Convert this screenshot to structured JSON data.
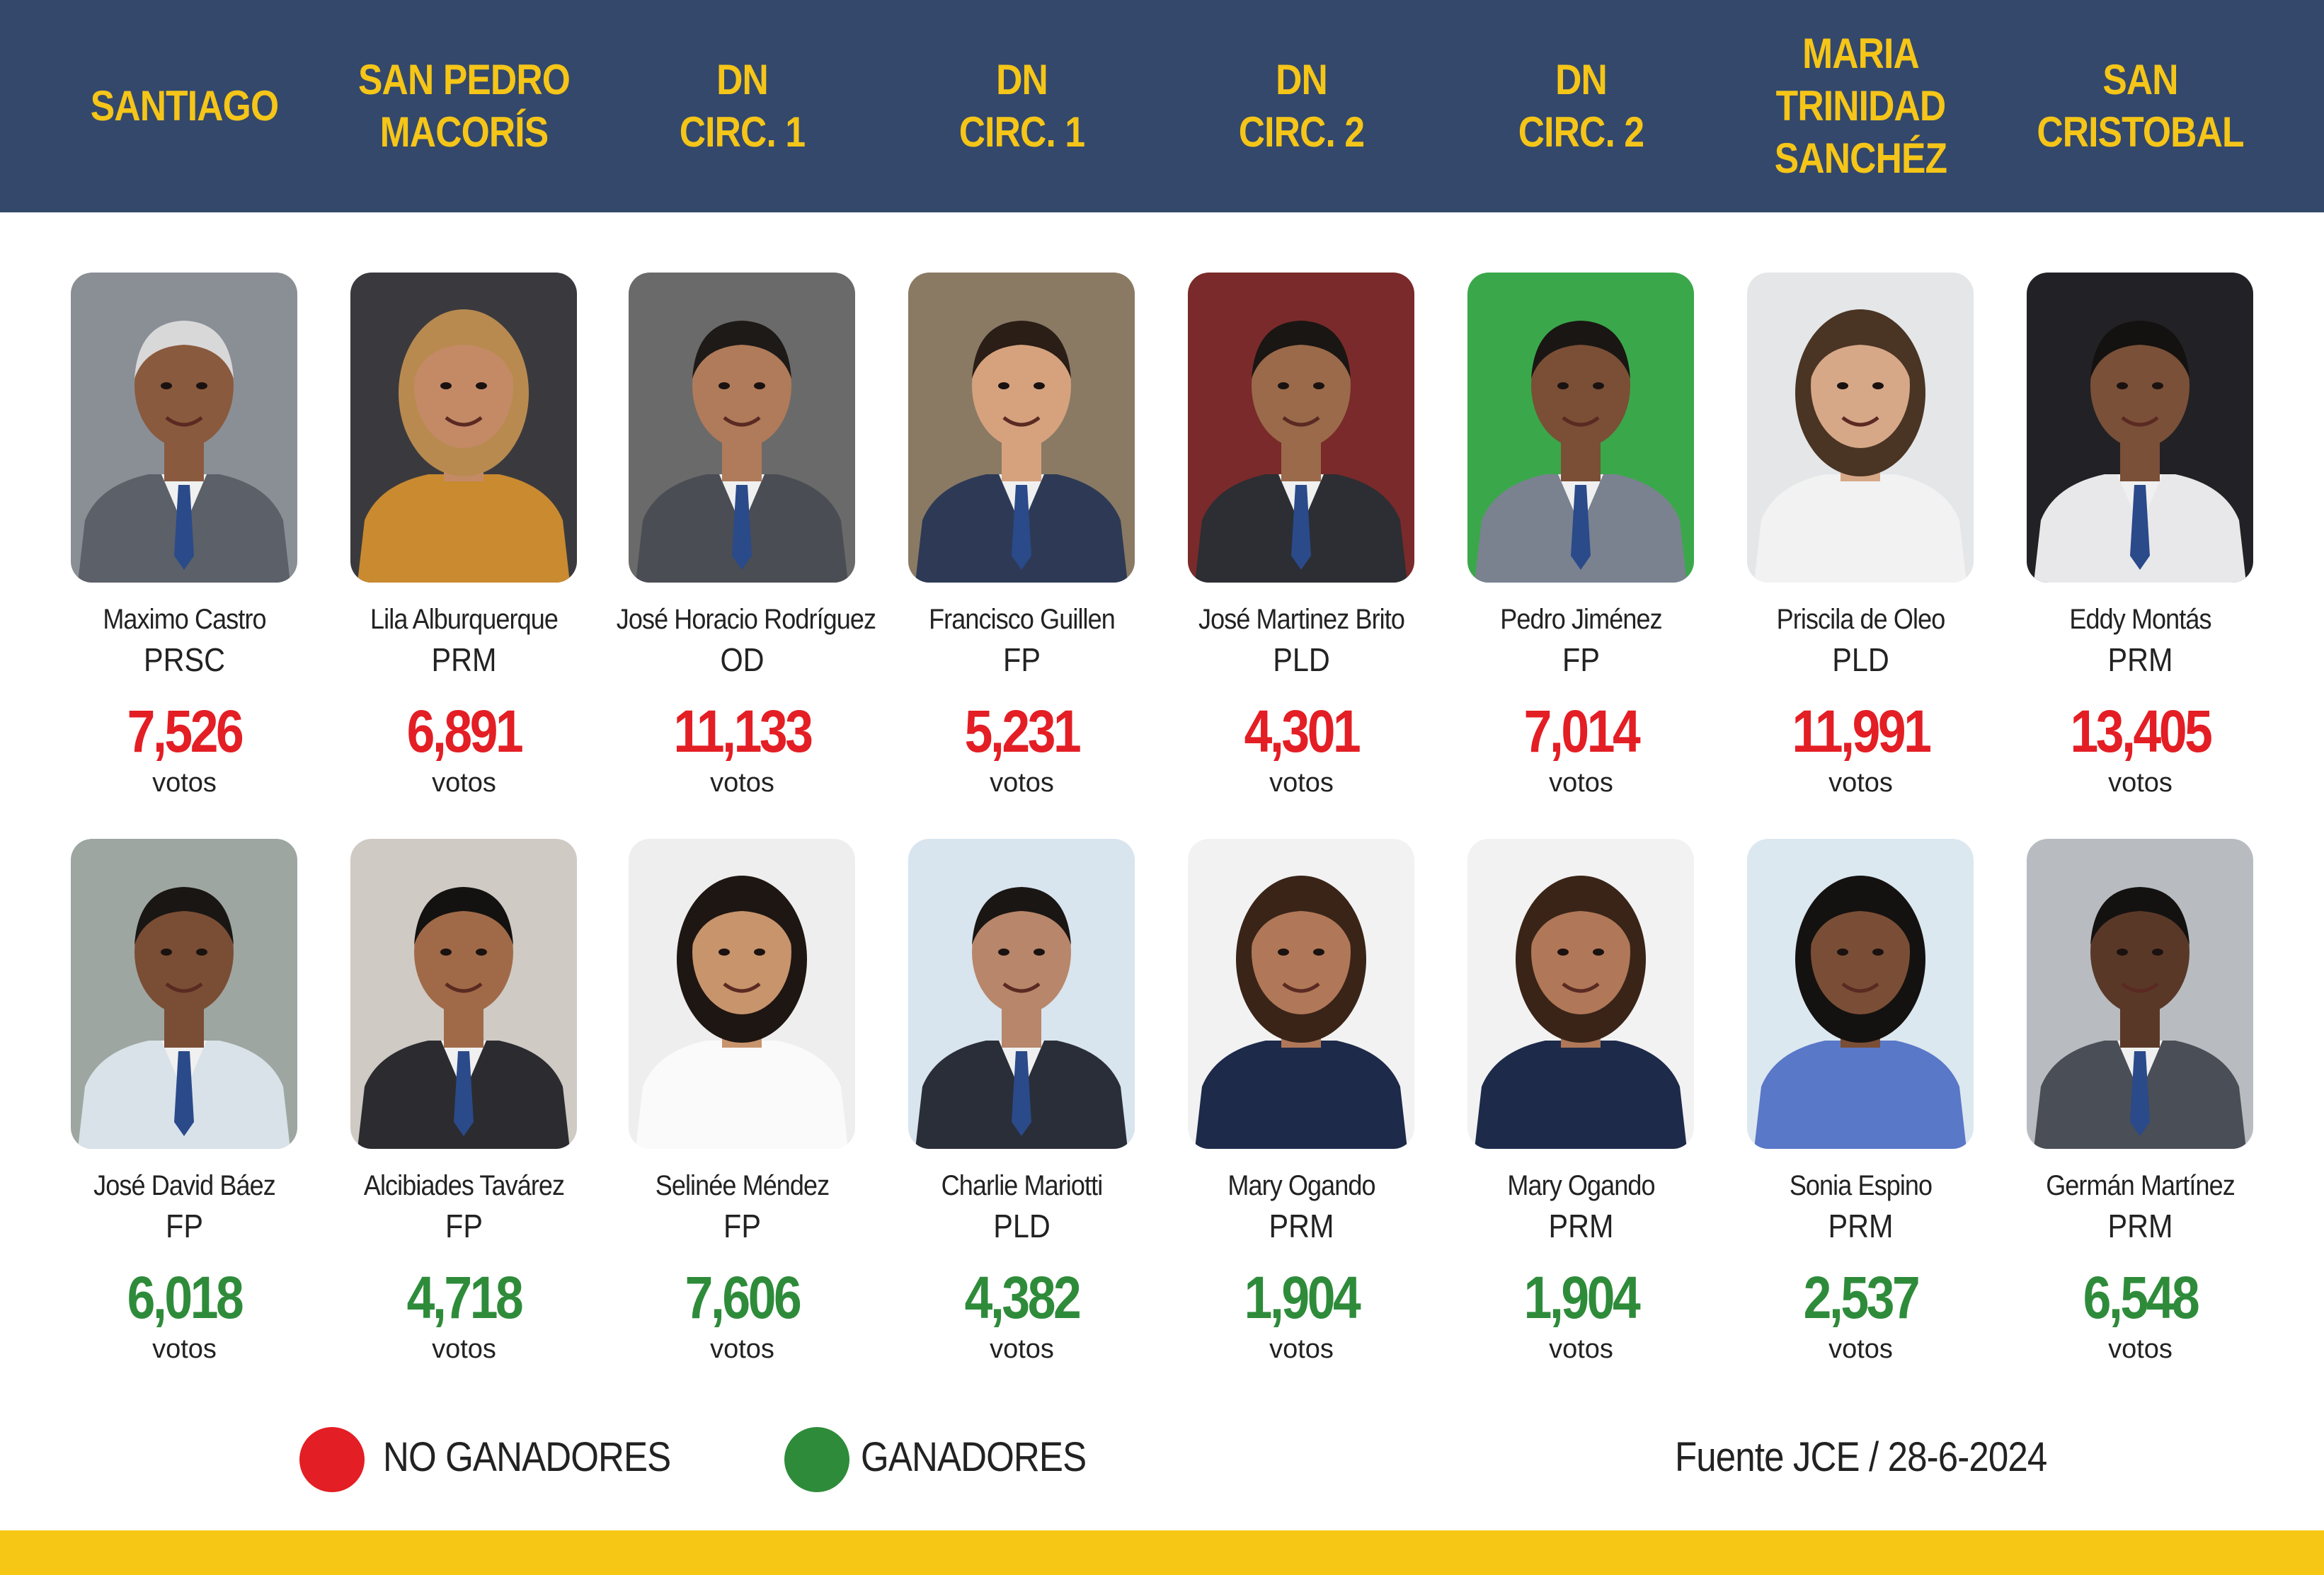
{
  "headers": [
    "SANTIAGO",
    "SAN PEDRO\nMACORÍS",
    "DN\nCIRC. 1",
    "DN\nCIRC. 1",
    "DN\nCIRC. 2",
    "DN\nCIRC. 2",
    "MARIA TRINIDAD\nSANCHÉZ",
    "SAN\nCRISTOBAL"
  ],
  "top_row": [
    {
      "name": "Maximo Castro",
      "party": "PRSC",
      "votes": "7,526",
      "votes_label": "votos",
      "bg": "#8a8f96",
      "skin": "#8a5a3e",
      "hair": "#d8d8d8",
      "suit": "#5b6069"
    },
    {
      "name": "Lila Alburquerque",
      "party": "PRM",
      "votes": "6,891",
      "votes_label": "votos",
      "bg": "#3a3a3e",
      "skin": "#c48a66",
      "hair": "#b88a50",
      "suit": "#c98a30"
    },
    {
      "name": "José Horacio Rodríguez",
      "party": "OD",
      "votes": "11,133",
      "votes_label": "votos",
      "bg": "#6a6a6a",
      "skin": "#b07b5a",
      "hair": "#1e1a18",
      "suit": "#4a4d53"
    },
    {
      "name": "Francisco Guillen",
      "party": "FP",
      "votes": "5,231",
      "votes_label": "votos",
      "bg": "#8a7a64",
      "skin": "#d6a27e",
      "hair": "#2a1e16",
      "suit": "#2e3a55"
    },
    {
      "name": "José Martinez Brito",
      "party": "PLD",
      "votes": "4,301",
      "votes_label": "votos",
      "bg": "#7a2a2a",
      "skin": "#9a6a4a",
      "hair": "#1a1614",
      "suit": "#2c2e33"
    },
    {
      "name": "Pedro Jiménez",
      "party": "FP",
      "votes": "7,014",
      "votes_label": "votos",
      "bg": "#3aa84a",
      "skin": "#7a4f36",
      "hair": "#1a1614",
      "suit": "#7a8290"
    },
    {
      "name": "Priscila de Oleo",
      "party": "PLD",
      "votes": "11,991",
      "votes_label": "votos",
      "bg": "#e4e6e8",
      "skin": "#d6a888",
      "hair": "#4a3424",
      "suit": "#f2f2f2"
    },
    {
      "name": "Eddy Montás",
      "party": "PRM",
      "votes": "13,405",
      "votes_label": "votos",
      "bg": "#222226",
      "skin": "#7a5038",
      "hair": "#141210",
      "suit": "#e8e8ea"
    }
  ],
  "bottom_row": [
    {
      "name": "José David Báez",
      "party": "FP",
      "votes": "6,018",
      "votes_label": "votos",
      "bg": "#9ea6a2",
      "skin": "#7a4e34",
      "hair": "#1a1614",
      "suit": "#d8e2e8"
    },
    {
      "name": "Alcibiades Tavárez",
      "party": "FP",
      "votes": "4,718",
      "votes_label": "votos",
      "bg": "#cfcac4",
      "skin": "#a06a48",
      "hair": "#141210",
      "suit": "#2c2c30"
    },
    {
      "name": "Selinée Méndez",
      "party": "FP",
      "votes": "7,606",
      "votes_label": "votos",
      "bg": "#eeeeee",
      "skin": "#c8946c",
      "hair": "#1e1612",
      "suit": "#fafafa"
    },
    {
      "name": "Charlie Mariotti",
      "party": "PLD",
      "votes": "4,382",
      "votes_label": "votos",
      "bg": "#d8e4ee",
      "skin": "#b8866a",
      "hair": "#1a1614",
      "suit": "#2a2e38"
    },
    {
      "name": "Mary Ogando",
      "party": "PRM",
      "votes": "1,904",
      "votes_label": "votos",
      "bg": "#f2f2f2",
      "skin": "#b07858",
      "hair": "#3a2418",
      "suit": "#1e2a4a"
    },
    {
      "name": "Mary Ogando",
      "party": "PRM",
      "votes": "1,904",
      "votes_label": "votos",
      "bg": "#f2f2f2",
      "skin": "#b07858",
      "hair": "#3a2418",
      "suit": "#1e2a4a"
    },
    {
      "name": "Sonia Espino",
      "party": "PRM",
      "votes": "2,537",
      "votes_label": "votos",
      "bg": "#dce8f0",
      "skin": "#7a4e36",
      "hair": "#141210",
      "suit": "#5a78c8"
    },
    {
      "name": "Germán Martínez",
      "party": "PRM",
      "votes": "6,548",
      "votes_label": "votos",
      "bg": "#b8bcc0",
      "skin": "#5a3828",
      "hair": "#141210",
      "suit": "#4a4e56"
    }
  ],
  "legend": {
    "losers_label": "NO GANADORES",
    "winners_label": "GANADORES",
    "losers_color": "#e31e24",
    "winners_color": "#2e8b3a"
  },
  "source": "Fuente JCE / 28-6-2024",
  "colors": {
    "header_bg": "#33486b",
    "header_text": "#f5c518",
    "footer_bar": "#f6c815"
  }
}
